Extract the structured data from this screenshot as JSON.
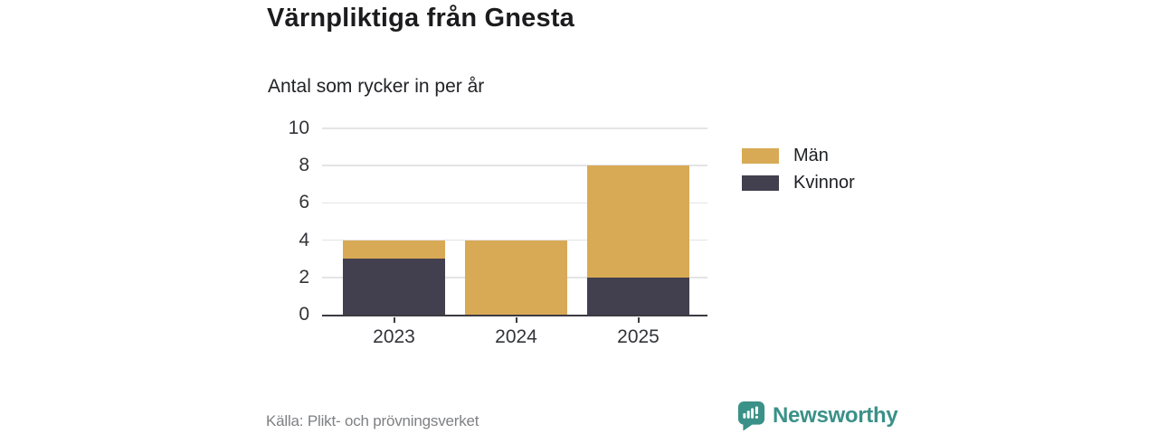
{
  "header": {
    "title": "Värnpliktiga från Gnesta",
    "subtitle": "Antal som rycker in per år"
  },
  "chart_data": {
    "type": "bar",
    "stacked": true,
    "title": "Värnpliktiga från Gnesta",
    "subtitle": "Antal som rycker in per år",
    "categories": [
      "2023",
      "2024",
      "2025"
    ],
    "series": [
      {
        "name": "Män",
        "color": "#d8aa55",
        "values": [
          1,
          4,
          6
        ]
      },
      {
        "name": "Kvinnor",
        "color": "#423f4e",
        "values": [
          3,
          0,
          2
        ]
      }
    ],
    "totals": [
      4,
      4,
      8
    ],
    "ylim": [
      0,
      10
    ],
    "yticks": [
      0,
      2,
      4,
      6,
      8,
      10
    ],
    "xlabel": "",
    "ylabel": "",
    "grid": "horizontal",
    "legend_position": "right"
  },
  "footer": {
    "source": "Källa: Plikt- och prövningsverket",
    "brand": "Newsworthy"
  },
  "colors": {
    "men": "#d8aa55",
    "women": "#423f4e",
    "brand_teal": "#3a9188",
    "grid": "#e4e4e6",
    "axis": "#3b3b42"
  }
}
